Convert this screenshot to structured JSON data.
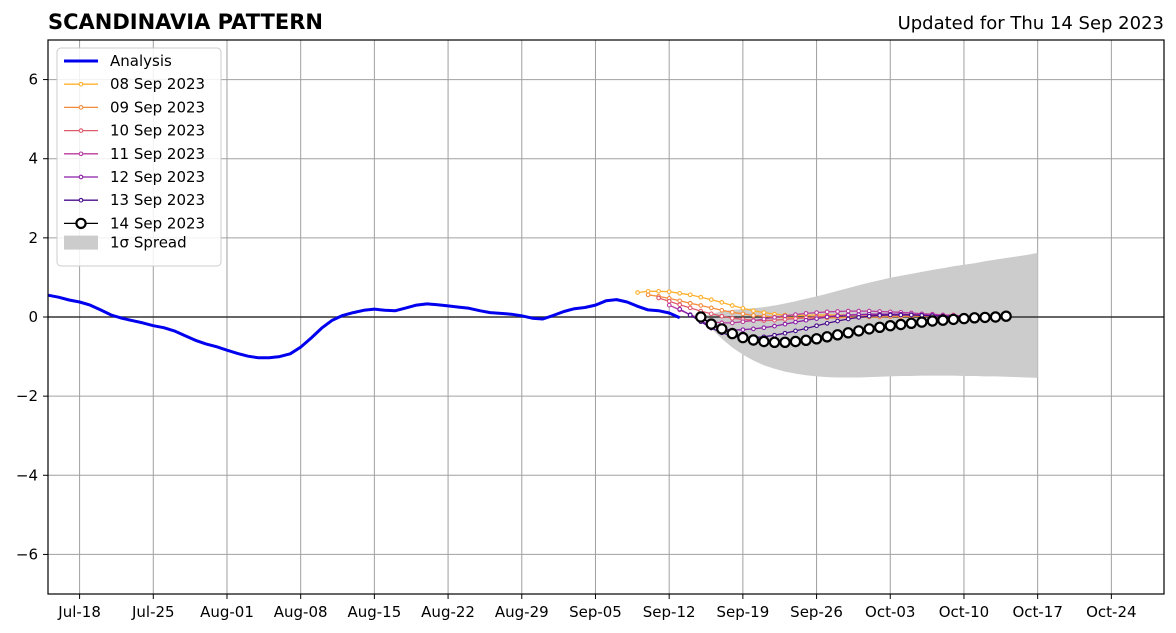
{
  "chart_data": {
    "type": "line",
    "title": "SCANDINAVIA PATTERN",
    "subtitle": "Updated for Thu 14 Sep 2023",
    "xlabel": "",
    "ylabel": "",
    "xlim": [
      "2023-07-15",
      "2023-10-29"
    ],
    "ylim": [
      -7,
      7
    ],
    "x_ticks": [
      "2023-07-18",
      "2023-07-25",
      "2023-08-01",
      "2023-08-08",
      "2023-08-15",
      "2023-08-22",
      "2023-08-29",
      "2023-09-05",
      "2023-09-12",
      "2023-09-19",
      "2023-09-26",
      "2023-10-03",
      "2023-10-10",
      "2023-10-17",
      "2023-10-24"
    ],
    "x_tick_labels": [
      "Jul-18",
      "Jul-25",
      "Aug-01",
      "Aug-08",
      "Aug-15",
      "Aug-22",
      "Aug-29",
      "Sep-05",
      "Sep-12",
      "Sep-19",
      "Sep-26",
      "Oct-03",
      "Oct-10",
      "Oct-17",
      "Oct-24"
    ],
    "y_ticks": [
      -6,
      -4,
      -2,
      0,
      2,
      4,
      6
    ],
    "y_tick_labels": [
      "−6",
      "−4",
      "−2",
      "0",
      "2",
      "4",
      "6"
    ],
    "grid": true,
    "legend_position": "top-left",
    "analysis": {
      "name": "Analysis",
      "color": "#0000ee",
      "start": "2023-07-15",
      "values": [
        0.55,
        0.5,
        0.43,
        0.38,
        0.3,
        0.18,
        0.05,
        -0.03,
        -0.09,
        -0.15,
        -0.22,
        -0.27,
        -0.35,
        -0.47,
        -0.59,
        -0.68,
        -0.75,
        -0.84,
        -0.92,
        -0.99,
        -1.03,
        -1.03,
        -1.0,
        -0.93,
        -0.76,
        -0.53,
        -0.28,
        -0.08,
        0.04,
        0.11,
        0.17,
        0.2,
        0.17,
        0.16,
        0.23,
        0.3,
        0.33,
        0.31,
        0.28,
        0.25,
        0.22,
        0.16,
        0.11,
        0.09,
        0.07,
        0.03,
        -0.03,
        -0.05,
        0.04,
        0.14,
        0.21,
        0.24,
        0.3,
        0.41,
        0.44,
        0.38,
        0.27,
        0.18,
        0.16,
        0.1,
        -0.02
      ]
    },
    "forecasts": [
      {
        "name": "08 Sep 2023",
        "color": "#ffb02e",
        "start": "2023-09-09",
        "values": [
          0.62,
          0.65,
          0.65,
          0.64,
          0.6,
          0.56,
          0.5,
          0.44,
          0.37,
          0.29,
          0.22,
          0.16,
          0.11,
          0.07,
          0.05,
          0.04,
          0.04,
          0.05,
          0.05,
          0.05,
          0.05,
          0.05,
          0.05,
          0.05,
          0.05,
          0.05,
          0.05,
          0.05,
          0.05
        ]
      },
      {
        "name": "09 Sep 2023",
        "color": "#f48c3c",
        "start": "2023-09-10",
        "values": [
          0.56,
          0.52,
          0.47,
          0.41,
          0.35,
          0.29,
          0.23,
          0.17,
          0.12,
          0.08,
          0.04,
          0.02,
          0.0,
          -0.01,
          -0.02,
          -0.02,
          -0.02,
          -0.02,
          -0.02,
          -0.01,
          -0.01,
          0.0,
          0.0,
          0.01,
          0.01,
          0.02,
          0.02,
          0.02,
          0.02
        ]
      },
      {
        "name": "10 Sep 2023",
        "color": "#e05a6e",
        "start": "2023-09-11",
        "values": [
          0.48,
          0.4,
          0.31,
          0.23,
          0.15,
          0.08,
          0.02,
          -0.03,
          -0.06,
          -0.08,
          -0.09,
          -0.08,
          -0.06,
          -0.04,
          -0.02,
          0.0,
          0.02,
          0.03,
          0.04,
          0.05,
          0.05,
          0.05,
          0.05,
          0.05,
          0.05,
          0.05,
          0.05,
          0.05,
          0.05
        ]
      },
      {
        "name": "11 Sep 2023",
        "color": "#b83b9e",
        "start": "2023-09-12",
        "values": [
          0.3,
          0.18,
          0.06,
          -0.05,
          -0.12,
          -0.15,
          -0.15,
          -0.12,
          -0.09,
          -0.05,
          -0.01,
          0.03,
          0.06,
          0.09,
          0.11,
          0.13,
          0.14,
          0.15,
          0.15,
          0.15,
          0.14,
          0.13,
          0.12,
          0.1,
          0.08,
          0.07,
          0.05,
          0.04,
          0.03
        ]
      },
      {
        "name": "12 Sep 2023",
        "color": "#8a1fa8",
        "start": "2023-09-13",
        "values": [
          0.2,
          0.05,
          -0.1,
          -0.22,
          -0.3,
          -0.33,
          -0.32,
          -0.3,
          -0.27,
          -0.23,
          -0.18,
          -0.13,
          -0.08,
          -0.04,
          0.0,
          0.03,
          0.05,
          0.06,
          0.07,
          0.07,
          0.07,
          0.07,
          0.06,
          0.05,
          0.04,
          0.03,
          0.02,
          0.01,
          0.0
        ]
      },
      {
        "name": "13 Sep 2023",
        "color": "#4a0d8a",
        "start": "2023-09-14",
        "values": [
          0.05,
          -0.12,
          -0.28,
          -0.4,
          -0.48,
          -0.52,
          -0.52,
          -0.5,
          -0.46,
          -0.41,
          -0.35,
          -0.29,
          -0.22,
          -0.16,
          -0.1,
          -0.05,
          -0.01,
          0.02,
          0.04,
          0.05,
          0.05,
          0.05,
          0.04,
          0.03,
          0.02,
          0.01,
          0.0,
          -0.01,
          -0.01
        ]
      },
      {
        "name": "14 Sep 2023",
        "color": "#000000",
        "start": "2023-09-15",
        "values": [
          0.0,
          -0.18,
          -0.3,
          -0.42,
          -0.52,
          -0.58,
          -0.62,
          -0.64,
          -0.64,
          -0.62,
          -0.59,
          -0.55,
          -0.5,
          -0.45,
          -0.4,
          -0.35,
          -0.3,
          -0.26,
          -0.22,
          -0.19,
          -0.16,
          -0.13,
          -0.1,
          -0.08,
          -0.06,
          -0.04,
          -0.02,
          -0.01,
          0.0,
          0.02
        ]
      }
    ],
    "spread": {
      "name": "1σ Spread",
      "color": "#cccccc",
      "start": "2023-09-15",
      "upper": [
        0.0,
        0.08,
        0.14,
        0.18,
        0.2,
        0.22,
        0.25,
        0.29,
        0.34,
        0.4,
        0.46,
        0.52,
        0.59,
        0.66,
        0.73,
        0.8,
        0.87,
        0.93,
        0.99,
        1.04,
        1.09,
        1.14,
        1.19,
        1.23,
        1.28,
        1.32,
        1.36,
        1.41,
        1.45,
        1.49,
        1.53,
        1.57,
        1.62
      ],
      "lower": [
        0.0,
        -0.29,
        -0.55,
        -0.77,
        -0.95,
        -1.1,
        -1.22,
        -1.31,
        -1.38,
        -1.43,
        -1.47,
        -1.5,
        -1.52,
        -1.53,
        -1.53,
        -1.53,
        -1.52,
        -1.51,
        -1.5,
        -1.49,
        -1.49,
        -1.48,
        -1.48,
        -1.48,
        -1.48,
        -1.49,
        -1.49,
        -1.5,
        -1.5,
        -1.51,
        -1.52,
        -1.53,
        -1.54
      ]
    }
  }
}
